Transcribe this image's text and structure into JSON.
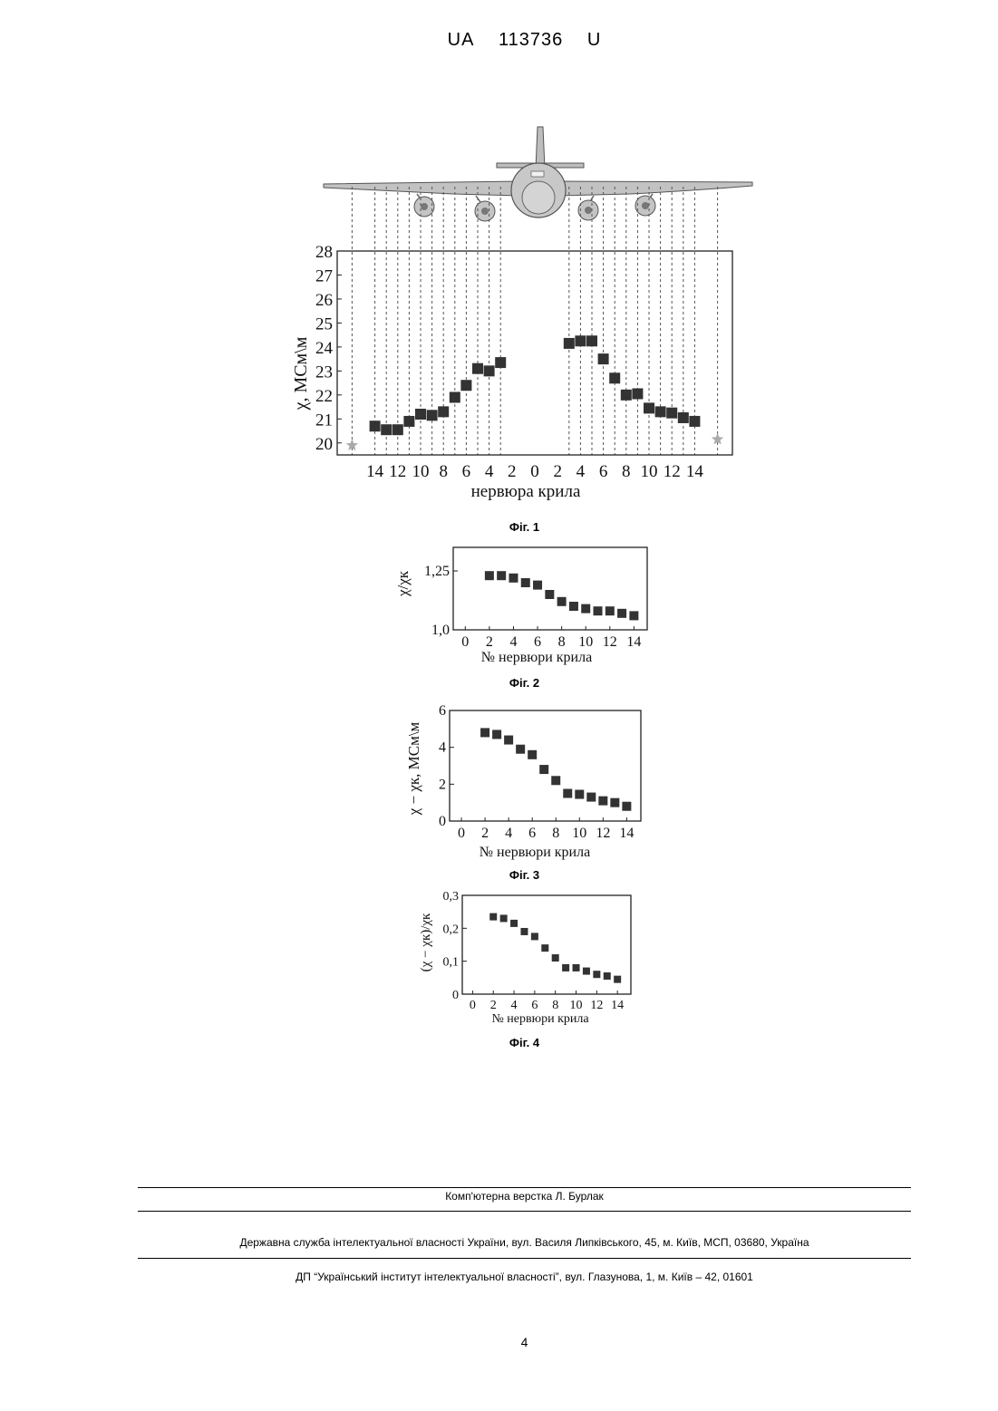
{
  "header": {
    "country": "UA",
    "number": "113736",
    "kind": "U"
  },
  "figures": [
    {
      "caption": "Фіг. 1"
    },
    {
      "caption": "Фіг. 2"
    },
    {
      "caption": "Фіг. 3"
    },
    {
      "caption": "Фіг. 4"
    }
  ],
  "footer": {
    "layout_credit": "Комп'ютерна верстка Л. Бурлак",
    "agency": "Державна служба інтелектуальної власності України, вул. Василя Липківського, 45, м. Київ, МСП, 03680, Україна",
    "institute": "ДП “Український інститут інтелектуальної власності”, вул. Глазунова, 1, м. Київ – 42, 01601",
    "page_number": "4"
  },
  "colors": {
    "marker": "#333333",
    "star": "#aaaaaa",
    "airframe": "#c2c2c2"
  },
  "chart_data": [
    {
      "type": "scatter",
      "figure": "Фіг. 1",
      "ylabel": "χ, МСм\\м",
      "xlabel": "нервюра крила",
      "ylim": [
        19.5,
        28
      ],
      "yticks": [
        "20",
        "21",
        "22",
        "23",
        "24",
        "25",
        "26",
        "27",
        "28"
      ],
      "xtick_labels": [
        "14",
        "12",
        "10",
        "8",
        "6",
        "4",
        "2",
        "0",
        "2",
        "4",
        "6",
        "8",
        "10",
        "12",
        "14"
      ],
      "illustration": "aircraft-front-view",
      "series": [
        {
          "side": "left",
          "x": [
            -14,
            -13,
            -12,
            -11,
            -10,
            -9,
            -8,
            -7,
            -6,
            -5,
            -4,
            -3
          ],
          "y": [
            20.7,
            20.55,
            20.55,
            20.9,
            21.2,
            21.15,
            21.3,
            21.9,
            22.4,
            23.1,
            23.0,
            23.35
          ]
        },
        {
          "side": "right",
          "x": [
            3,
            4,
            5,
            6,
            7,
            8,
            9,
            10,
            11,
            12,
            13,
            14
          ],
          "y": [
            24.15,
            24.25,
            24.25,
            23.5,
            22.7,
            22.0,
            22.05,
            21.45,
            21.3,
            21.25,
            21.05,
            20.9
          ]
        }
      ],
      "reference_points": [
        {
          "x": -16,
          "y": 19.9
        },
        {
          "x": 16,
          "y": 20.15
        }
      ]
    },
    {
      "type": "scatter",
      "figure": "Фіг. 2",
      "ylabel": "χ/χк",
      "xlabel": "№ нервюри крила",
      "ylim": [
        1.0,
        1.35
      ],
      "yticks": [
        "1,0",
        "1,25"
      ],
      "xticks": [
        "0",
        "2",
        "4",
        "6",
        "8",
        "10",
        "12",
        "14"
      ],
      "x": [
        2,
        3,
        4,
        5,
        6,
        7,
        8,
        9,
        10,
        11,
        12,
        13,
        14
      ],
      "y": [
        1.23,
        1.23,
        1.22,
        1.2,
        1.19,
        1.15,
        1.12,
        1.1,
        1.09,
        1.08,
        1.08,
        1.07,
        1.06
      ]
    },
    {
      "type": "scatter",
      "figure": "Фіг. 3",
      "ylabel": "χ − χк, МСм\\м",
      "xlabel": "№ нервюри крила",
      "ylim": [
        0,
        6
      ],
      "yticks": [
        "0",
        "2",
        "4",
        "6"
      ],
      "xticks": [
        "0",
        "2",
        "4",
        "6",
        "8",
        "10",
        "12",
        "14"
      ],
      "x": [
        2,
        3,
        4,
        5,
        6,
        7,
        8,
        9,
        10,
        11,
        12,
        13,
        14
      ],
      "y": [
        4.8,
        4.7,
        4.4,
        3.9,
        3.6,
        2.8,
        2.2,
        1.5,
        1.45,
        1.3,
        1.1,
        1.0,
        0.8
      ]
    },
    {
      "type": "scatter",
      "figure": "Фіг. 4",
      "ylabel": "(χ − χк)/χк",
      "xlabel": "№ нервюри крила",
      "ylim": [
        0,
        0.3
      ],
      "yticks": [
        "0",
        "0,1",
        "0,2",
        "0,3"
      ],
      "xticks": [
        "0",
        "2",
        "4",
        "6",
        "8",
        "10",
        "12",
        "14"
      ],
      "x": [
        2,
        3,
        4,
        5,
        6,
        7,
        8,
        9,
        10,
        11,
        12,
        13,
        14
      ],
      "y": [
        0.235,
        0.23,
        0.215,
        0.19,
        0.175,
        0.14,
        0.11,
        0.08,
        0.08,
        0.07,
        0.06,
        0.055,
        0.045
      ]
    }
  ]
}
